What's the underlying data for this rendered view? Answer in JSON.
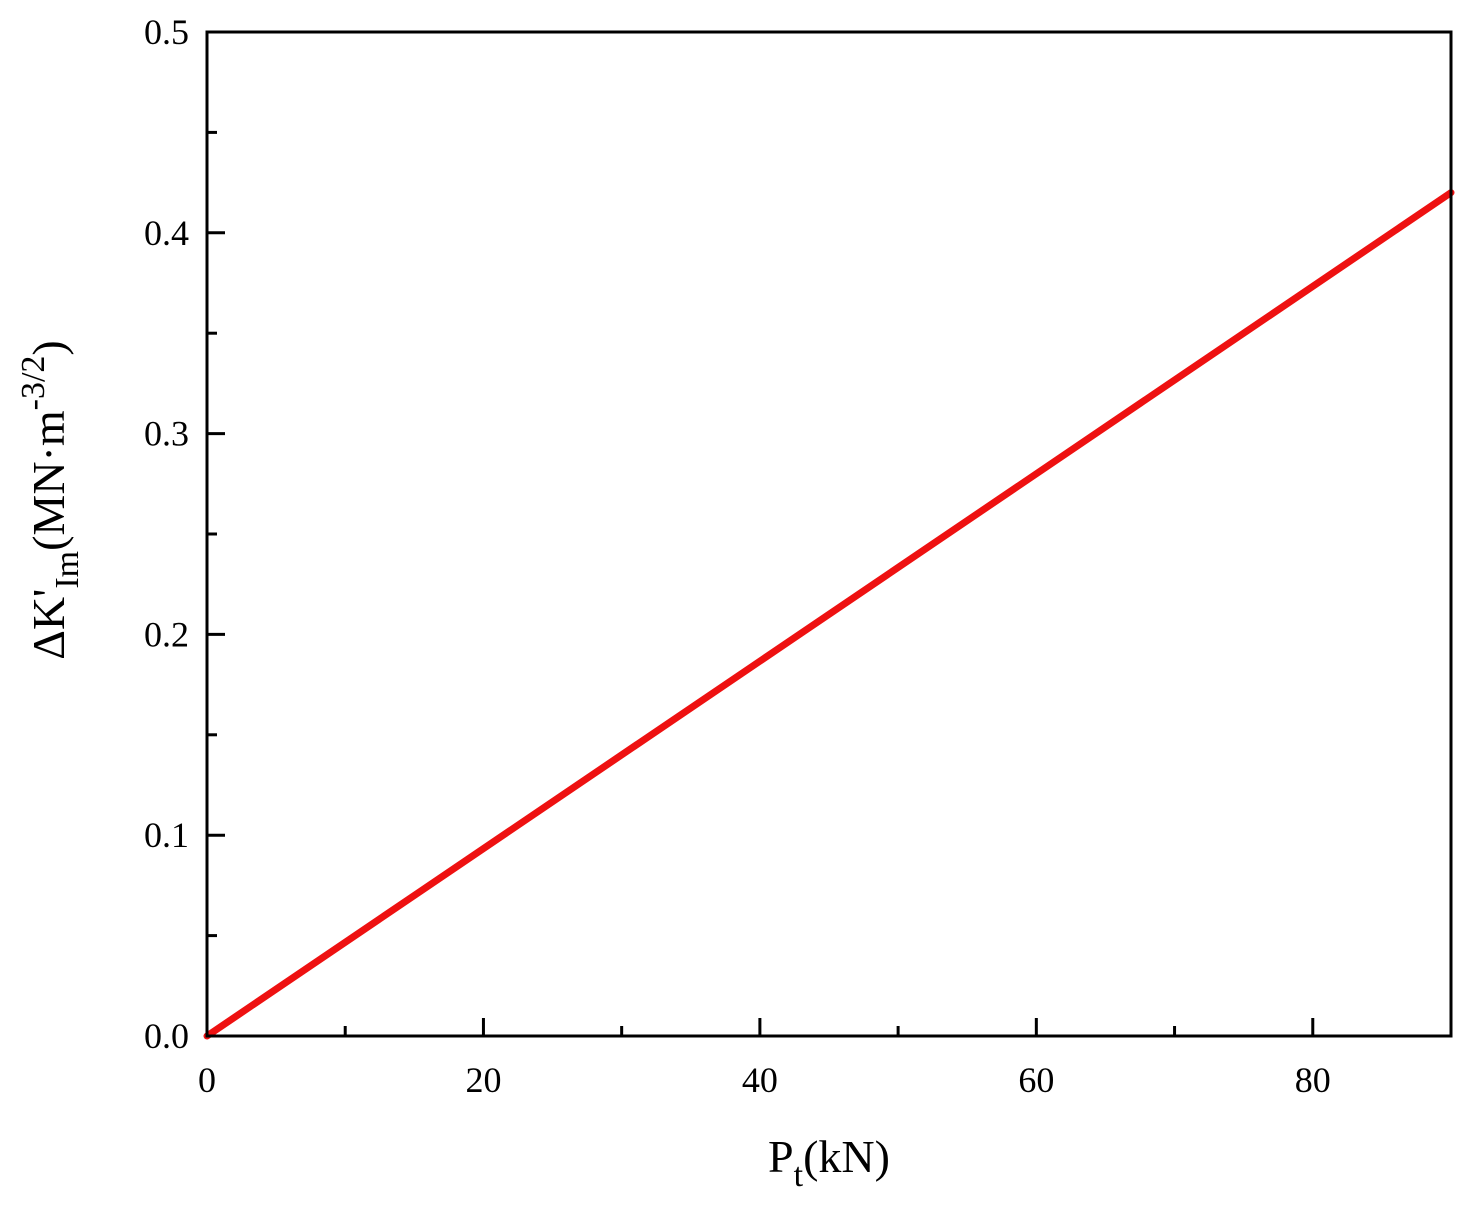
{
  "chart_data": {
    "type": "line",
    "title": "",
    "xlabel": {
      "base": "P",
      "subscript": "t",
      "rest": "(kN)"
    },
    "ylabel": {
      "prefix": "ΔK'",
      "subscript": "Im",
      "middle": "(MN·m",
      "superscript": "-3/2",
      "suffix": ")"
    },
    "xlim": [
      0,
      90
    ],
    "ylim": [
      0,
      0.5
    ],
    "x_ticks": [
      0,
      20,
      40,
      60,
      80
    ],
    "x_tick_labels": [
      "0",
      "20",
      "40",
      "60",
      "80"
    ],
    "x_minor_ticks": [
      10,
      30,
      50,
      70
    ],
    "y_ticks": [
      0,
      0.1,
      0.2,
      0.3,
      0.4,
      0.5
    ],
    "y_tick_labels": [
      "0.0",
      "0.1",
      "0.2",
      "0.3",
      "0.4",
      "0.5"
    ],
    "y_minor_ticks": [
      0.05,
      0.15,
      0.25,
      0.35,
      0.45
    ],
    "grid": false,
    "legend": "none",
    "series": [
      {
        "color": "#ee1111",
        "x": [
          0,
          90
        ],
        "y": [
          0,
          0.42
        ]
      }
    ]
  }
}
